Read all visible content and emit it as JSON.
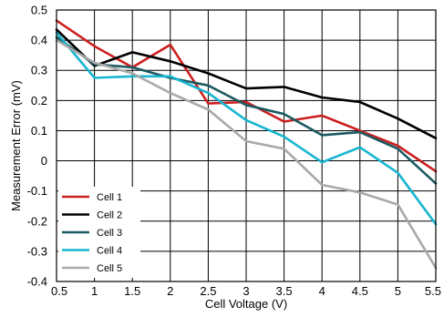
{
  "chart_data": {
    "type": "line",
    "title": "",
    "xlabel": "Cell Voltage (V)",
    "ylabel": "Measurement Error (mV)",
    "xlim": [
      0.5,
      5.5
    ],
    "ylim": [
      -0.4,
      0.5
    ],
    "x_ticks": [
      "0.5",
      "1",
      "1.5",
      "2",
      "2.5",
      "3",
      "3.5",
      "4",
      "4.5",
      "5",
      "5.5"
    ],
    "y_ticks": [
      "0.5",
      "0.4",
      "0.3",
      "0.2",
      "0.1",
      "0",
      "-0.1",
      "-0.2",
      "-0.3",
      "-0.4"
    ],
    "grid": true,
    "legend_position": "bottom-left",
    "x": [
      0.5,
      1,
      1.5,
      2,
      2.5,
      3,
      3.5,
      4,
      4.5,
      5,
      5.5
    ],
    "series": [
      {
        "name": "Cell 1",
        "color": "#cc1f1f",
        "values": [
          0.465,
          0.38,
          0.31,
          0.385,
          0.19,
          0.195,
          0.13,
          0.15,
          0.1,
          0.05,
          -0.035
        ]
      },
      {
        "name": "Cell 2",
        "color": "#000000",
        "values": [
          0.435,
          0.315,
          0.36,
          0.33,
          0.29,
          0.24,
          0.245,
          0.21,
          0.195,
          0.14,
          0.075
        ]
      },
      {
        "name": "Cell 3",
        "color": "#1c5a62",
        "values": [
          0.41,
          0.32,
          0.31,
          0.275,
          0.25,
          0.185,
          0.155,
          0.085,
          0.095,
          0.04,
          -0.075
        ]
      },
      {
        "name": "Cell 4",
        "color": "#17b5cf",
        "values": [
          0.425,
          0.275,
          0.28,
          0.28,
          0.225,
          0.135,
          0.08,
          -0.005,
          0.045,
          -0.04,
          -0.21
        ]
      },
      {
        "name": "Cell 5",
        "color": "#a9a9a9",
        "values": [
          0.4,
          0.325,
          0.29,
          0.225,
          0.17,
          0.065,
          0.04,
          -0.08,
          -0.105,
          -0.145,
          -0.355
        ]
      }
    ]
  }
}
